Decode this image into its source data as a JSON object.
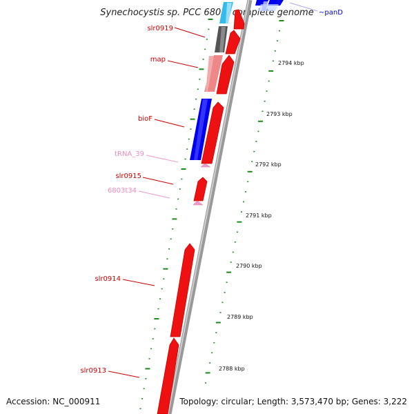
{
  "header": {
    "title": "Synechocystis sp. PCC 6803, complete genome"
  },
  "footer": {
    "accession": "Accession: NC_000911",
    "topology": "Topology: circular; Length: 3,573,470 bp; Genes: 3,222"
  },
  "colors": {
    "cds": "#ee1111",
    "cds_label": "#cc0000",
    "rna": "#ee99cc",
    "rna_label": "#ee88bb",
    "backbone": "#999999",
    "tick": "#1a8a1a",
    "blue_feature": "#0000ee",
    "cyan_feature": "#33bbee",
    "gray_feature": "#555555",
    "salmon_feature": "#ee8888"
  },
  "gene_labels": {
    "slr0919": "slr0919",
    "map": "map",
    "bioF": "bioF",
    "tRNA_39": "tRNA_39",
    "slr0915": "slr0915",
    "t6803t34": "6803t34",
    "slr0914": "slr0914",
    "slr0913": "slr0913",
    "panD": "~panD"
  },
  "kbp_ticks": {
    "t2794": "2794 kbp",
    "t2793": "2793 kbp",
    "t2792": "2792 kbp",
    "t2791": "2791 kbp",
    "t2790": "2790 kbp",
    "t2789": "2789 kbp",
    "t2788": "2788 kbp"
  }
}
